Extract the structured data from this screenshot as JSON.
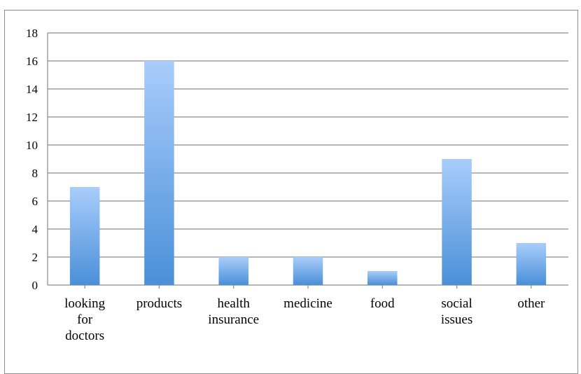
{
  "chart_data": {
    "type": "bar",
    "categories": [
      [
        "looking",
        "for",
        "doctors"
      ],
      [
        "products"
      ],
      [
        "health",
        "insurance"
      ],
      [
        "medicine"
      ],
      [
        "food"
      ],
      [
        "social",
        "issues"
      ],
      [
        "other"
      ]
    ],
    "values": [
      7,
      16,
      2,
      2,
      1,
      9,
      3
    ],
    "ylim": [
      0,
      18
    ],
    "yticks": [
      0,
      2,
      4,
      6,
      8,
      10,
      12,
      14,
      16,
      18
    ],
    "grid": true,
    "legend": "none",
    "colors": {
      "bar_top": "#a9cdfb",
      "bar_bottom": "#4a8fd8",
      "grid": "#8a8a8a"
    }
  }
}
